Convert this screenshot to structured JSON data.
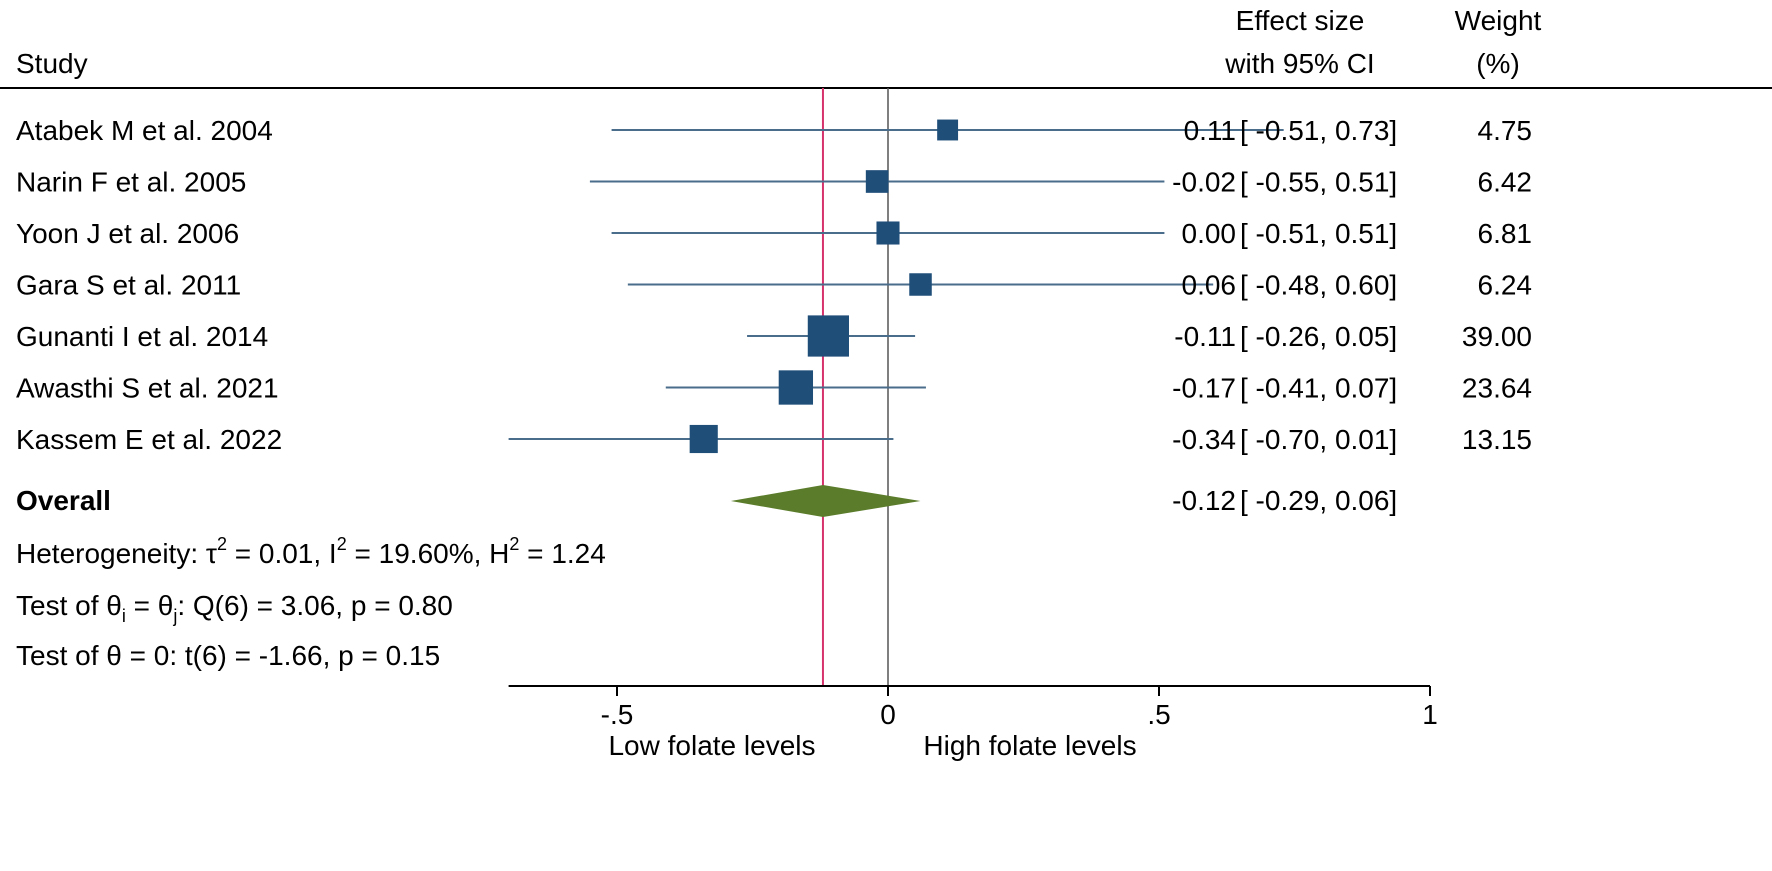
{
  "chart_data": {
    "type": "forest",
    "headers": {
      "study": "Study",
      "effect_line1": "Effect size",
      "effect_line2": "with 95% CI",
      "weight_line1": "Weight",
      "weight_line2": "(%)"
    },
    "studies": [
      {
        "name": "Atabek M et al. 2004",
        "es": 0.11,
        "lo": -0.51,
        "hi": 0.73,
        "es_text": "0.11",
        "ci_text": "[ -0.51,  0.73]",
        "weight": 4.75,
        "weight_text": "4.75"
      },
      {
        "name": "Narin F et al. 2005",
        "es": -0.02,
        "lo": -0.55,
        "hi": 0.51,
        "es_text": "-0.02",
        "ci_text": "[ -0.55,  0.51]",
        "weight": 6.42,
        "weight_text": "6.42"
      },
      {
        "name": "Yoon J et al. 2006",
        "es": 0.0,
        "lo": -0.51,
        "hi": 0.51,
        "es_text": "0.00",
        "ci_text": "[ -0.51,  0.51]",
        "weight": 6.81,
        "weight_text": "6.81"
      },
      {
        "name": "Gara S et al. 2011",
        "es": 0.06,
        "lo": -0.48,
        "hi": 0.6,
        "es_text": "0.06",
        "ci_text": "[ -0.48,  0.60]",
        "weight": 6.24,
        "weight_text": "6.24"
      },
      {
        "name": "Gunanti I et al. 2014",
        "es": -0.11,
        "lo": -0.26,
        "hi": 0.05,
        "es_text": "-0.11",
        "ci_text": "[ -0.26,  0.05]",
        "weight": 39.0,
        "weight_text": "39.00"
      },
      {
        "name": "Awasthi S et al. 2021",
        "es": -0.17,
        "lo": -0.41,
        "hi": 0.07,
        "es_text": "-0.17",
        "ci_text": "[ -0.41,  0.07]",
        "weight": 23.64,
        "weight_text": "23.64"
      },
      {
        "name": "Kassem E et al. 2022",
        "es": -0.34,
        "lo": -0.7,
        "hi": 0.01,
        "es_text": "-0.34",
        "ci_text": "[ -0.70,  0.01]",
        "weight": 13.15,
        "weight_text": "13.15"
      }
    ],
    "overall": {
      "label": "Overall",
      "es": -0.12,
      "lo": -0.29,
      "hi": 0.06,
      "es_text": "-0.12",
      "ci_text": "[ -0.29,  0.06]"
    },
    "heterogeneity": {
      "prefix": "Heterogeneity: τ",
      "tau_sup": "2",
      "tau_val": " = 0.01, I",
      "i_sup": "2",
      "i_val": " = 19.60%, H",
      "h_sup": "2",
      "h_val": " = 1.24"
    },
    "test_homogeneity": {
      "part1": "Test of θ",
      "sub1": "i",
      "part2": " = θ",
      "sub2": "j",
      "part3": ": Q(6) = 3.06, p = 0.80"
    },
    "test_overall": "Test of θ = 0: t(6) = -1.66, p = 0.15",
    "x_axis": {
      "ticks": [
        -0.5,
        0,
        0.5,
        1
      ],
      "tick_labels": [
        "-.5",
        "0",
        ".5",
        "1"
      ],
      "range": [
        -0.7,
        1
      ],
      "label_left": "Low folate levels",
      "label_right": "High folate levels"
    },
    "reference_line": 0,
    "overall_line": -0.12,
    "colors": {
      "marker": "#1f4e79",
      "ci_line": "#4a6d8c",
      "diamond": "#5b7d2b",
      "overall_line": "#d6336c",
      "ref_line": "#555555",
      "axis": "#000000"
    }
  }
}
